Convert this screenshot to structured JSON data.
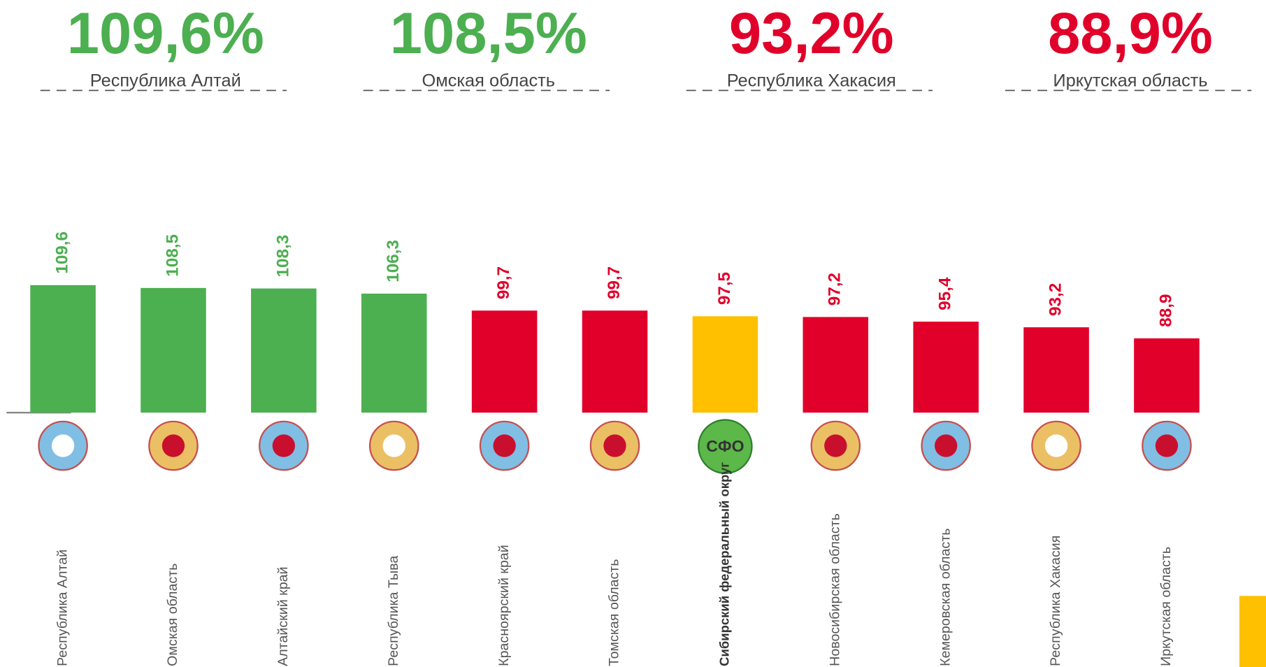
{
  "chart_data": {
    "type": "bar",
    "highlights": [
      {
        "value": 109.6,
        "label": "109,6%",
        "region": "Республика Алтай",
        "color": "#4caf50"
      },
      {
        "value": 108.5,
        "label": "108,5%",
        "region": "Омская область",
        "color": "#4caf50"
      },
      {
        "value": 93.2,
        "label": "93,2%",
        "region": "Республика Хакасия",
        "color": "#e0002a"
      },
      {
        "value": 88.9,
        "label": "88,9%",
        "region": "Иркутская область",
        "color": "#e0002a"
      }
    ],
    "categories": [
      "Республика Алтай",
      "Омская область",
      "Алтайский край",
      "Республика Тыва",
      "Красноярский край",
      "Томская область",
      "Сибирский федеральный округ",
      "Новосибирская область",
      "Кемеровская область",
      "Республика Хакасия",
      "Иркутская область"
    ],
    "values": [
      109.6,
      108.5,
      108.3,
      106.3,
      99.7,
      99.7,
      97.5,
      97.2,
      95.4,
      93.2,
      88.9
    ],
    "value_labels": [
      "109,6",
      "108,5",
      "108,3",
      "106,3",
      "99,7",
      "99,7",
      "97,5",
      "97,2",
      "95,4",
      "93,2",
      "88,9"
    ],
    "colors": [
      "#4caf50",
      "#4caf50",
      "#4caf50",
      "#4caf50",
      "#e0002a",
      "#e0002a",
      "#ffc000",
      "#e0002a",
      "#e0002a",
      "#e0002a",
      "#e0002a"
    ],
    "label_colors": [
      "#4caf50",
      "#4caf50",
      "#4caf50",
      "#4caf50",
      "#e0002a",
      "#e0002a",
      "#e0002a",
      "#e0002a",
      "#e0002a",
      "#e0002a",
      "#e0002a"
    ],
    "sfo_emblem": "СФО",
    "ylim": [
      60,
      120
    ]
  }
}
